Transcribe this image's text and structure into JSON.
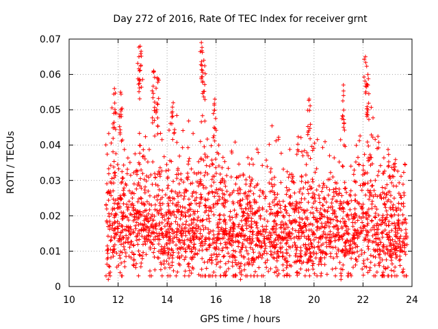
{
  "chart_data": {
    "type": "scatter",
    "title": "Day 272 of 2016, Rate Of TEC Index for receiver grnt",
    "xlabel": "GPS time / hours",
    "ylabel": "ROTI / TECUs",
    "xlim": [
      10,
      24
    ],
    "ylim": [
      0,
      0.07
    ],
    "xticks": [
      10,
      12,
      14,
      16,
      18,
      20,
      22,
      24
    ],
    "xtick_labels": [
      "10",
      "12",
      "14",
      "16",
      "18",
      "20",
      "22",
      "24"
    ],
    "yticks": [
      0,
      0.01,
      0.02,
      0.03,
      0.04,
      0.05,
      0.06,
      0.07
    ],
    "ytick_labels": [
      "0",
      "0.01",
      "0.02",
      "0.03",
      "0.04",
      "0.05",
      "0.06",
      "0.07"
    ],
    "grid": true,
    "marker": "+",
    "color": "#ff0000",
    "data_range_x": [
      11.5,
      23.8
    ],
    "envelope": [
      {
        "x": 11.5,
        "mean": 0.017,
        "spread": 0.01,
        "max": 0.04
      },
      {
        "x": 11.8,
        "mean": 0.018,
        "spread": 0.011,
        "max": 0.056
      },
      {
        "x": 12.1,
        "mean": 0.018,
        "spread": 0.01,
        "max": 0.055
      },
      {
        "x": 12.5,
        "mean": 0.017,
        "spread": 0.01,
        "max": 0.045
      },
      {
        "x": 12.9,
        "mean": 0.02,
        "spread": 0.012,
        "max": 0.068
      },
      {
        "x": 13.2,
        "mean": 0.017,
        "spread": 0.01,
        "max": 0.047
      },
      {
        "x": 13.5,
        "mean": 0.019,
        "spread": 0.011,
        "max": 0.061
      },
      {
        "x": 13.9,
        "mean": 0.016,
        "spread": 0.01,
        "max": 0.045
      },
      {
        "x": 14.3,
        "mean": 0.016,
        "spread": 0.01,
        "max": 0.052
      },
      {
        "x": 14.8,
        "mean": 0.017,
        "spread": 0.01,
        "max": 0.045
      },
      {
        "x": 15.1,
        "mean": 0.016,
        "spread": 0.01,
        "max": 0.052
      },
      {
        "x": 15.4,
        "mean": 0.02,
        "spread": 0.012,
        "max": 0.069
      },
      {
        "x": 15.8,
        "mean": 0.018,
        "spread": 0.011,
        "max": 0.054
      },
      {
        "x": 16.3,
        "mean": 0.017,
        "spread": 0.01,
        "max": 0.046
      },
      {
        "x": 16.8,
        "mean": 0.016,
        "spread": 0.01,
        "max": 0.046
      },
      {
        "x": 17.2,
        "mean": 0.015,
        "spread": 0.009,
        "max": 0.042
      },
      {
        "x": 17.8,
        "mean": 0.015,
        "spread": 0.009,
        "max": 0.043
      },
      {
        "x": 18.3,
        "mean": 0.014,
        "spread": 0.009,
        "max": 0.046
      },
      {
        "x": 18.9,
        "mean": 0.014,
        "spread": 0.009,
        "max": 0.04
      },
      {
        "x": 19.4,
        "mean": 0.015,
        "spread": 0.01,
        "max": 0.045
      },
      {
        "x": 19.8,
        "mean": 0.016,
        "spread": 0.01,
        "max": 0.053
      },
      {
        "x": 20.3,
        "mean": 0.015,
        "spread": 0.009,
        "max": 0.04
      },
      {
        "x": 20.7,
        "mean": 0.016,
        "spread": 0.01,
        "max": 0.046
      },
      {
        "x": 21.2,
        "mean": 0.017,
        "spread": 0.01,
        "max": 0.057
      },
      {
        "x": 21.6,
        "mean": 0.015,
        "spread": 0.009,
        "max": 0.04
      },
      {
        "x": 22.1,
        "mean": 0.018,
        "spread": 0.011,
        "max": 0.065
      },
      {
        "x": 22.6,
        "mean": 0.016,
        "spread": 0.01,
        "max": 0.043
      },
      {
        "x": 23.1,
        "mean": 0.015,
        "spread": 0.009,
        "max": 0.038
      },
      {
        "x": 23.5,
        "mean": 0.015,
        "spread": 0.009,
        "max": 0.041
      },
      {
        "x": 23.8,
        "mean": 0.015,
        "spread": 0.009,
        "max": 0.036
      }
    ],
    "peaks": [
      {
        "x": 11.85,
        "y": 0.056
      },
      {
        "x": 12.1,
        "y": 0.055
      },
      {
        "x": 12.9,
        "y": 0.068
      },
      {
        "x": 12.85,
        "y": 0.065
      },
      {
        "x": 13.45,
        "y": 0.061
      },
      {
        "x": 13.6,
        "y": 0.059
      },
      {
        "x": 14.25,
        "y": 0.052
      },
      {
        "x": 15.4,
        "y": 0.069
      },
      {
        "x": 15.5,
        "y": 0.064
      },
      {
        "x": 15.95,
        "y": 0.053
      },
      {
        "x": 19.8,
        "y": 0.053
      },
      {
        "x": 21.2,
        "y": 0.057
      },
      {
        "x": 22.1,
        "y": 0.065
      },
      {
        "x": 22.2,
        "y": 0.06
      }
    ],
    "min_values": [
      {
        "x": 11.6,
        "y": 0.002
      },
      {
        "x": 17.0,
        "y": 0.002
      },
      {
        "x": 21.1,
        "y": 0.002
      }
    ]
  }
}
